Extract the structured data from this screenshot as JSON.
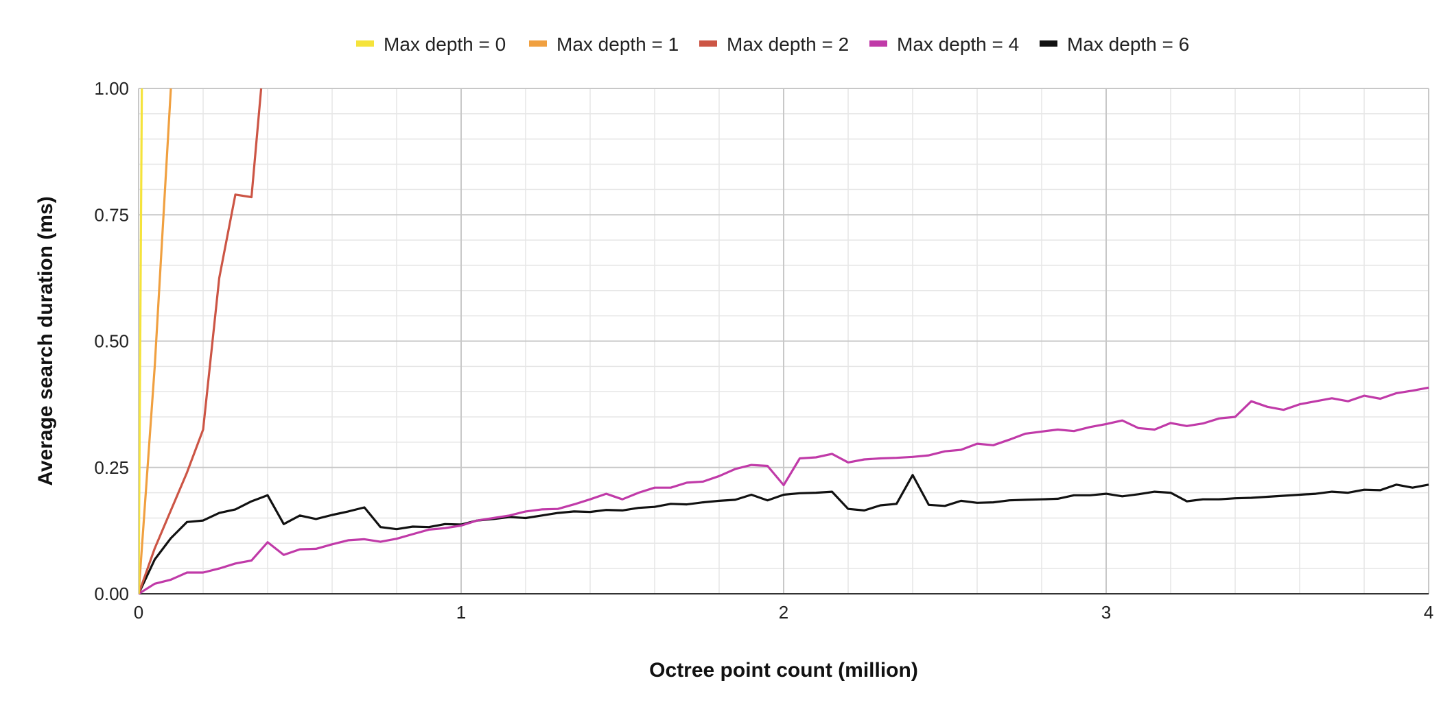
{
  "chart_data": {
    "type": "line",
    "title": "",
    "xlabel": "Octree point count (million)",
    "ylabel": "Average search duration (ms)",
    "xlim": [
      0,
      4
    ],
    "ylim": [
      0,
      1
    ],
    "x_ticks": [
      0,
      1,
      2,
      3,
      4
    ],
    "x_tick_labels": [
      "0",
      "1",
      "2",
      "3",
      "4"
    ],
    "y_ticks": [
      0,
      0.25,
      0.5,
      0.75,
      1
    ],
    "y_tick_labels": [
      "0.00",
      "0.25",
      "0.50",
      "0.75",
      "1.00"
    ],
    "grid": true,
    "legend_position": "top-center",
    "series": [
      {
        "name": "Max depth = 0",
        "color": "#f5e33b",
        "x": [
          0,
          0.01
        ],
        "y": [
          0,
          1.0
        ]
      },
      {
        "name": "Max depth = 1",
        "color": "#f0a040",
        "x": [
          0,
          0.05,
          0.1
        ],
        "y": [
          0,
          0.45,
          1.0
        ]
      },
      {
        "name": "Max depth = 2",
        "color": "#cc5545",
        "x": [
          0,
          0.05,
          0.1,
          0.15,
          0.2,
          0.25,
          0.3,
          0.35,
          0.38
        ],
        "y": [
          0,
          0.09,
          0.165,
          0.24,
          0.325,
          0.625,
          0.79,
          0.785,
          1.0
        ]
      },
      {
        "name": "Max depth = 4",
        "color": "#c03aa8",
        "x": [
          0,
          0.05,
          0.1,
          0.15,
          0.2,
          0.25,
          0.3,
          0.35,
          0.4,
          0.45,
          0.5,
          0.55,
          0.6,
          0.65,
          0.7,
          0.75,
          0.8,
          0.85,
          0.9,
          0.95,
          1.0,
          1.05,
          1.1,
          1.15,
          1.2,
          1.25,
          1.3,
          1.35,
          1.4,
          1.45,
          1.5,
          1.55,
          1.6,
          1.65,
          1.7,
          1.75,
          1.8,
          1.85,
          1.9,
          1.95,
          2.0,
          2.05,
          2.1,
          2.15,
          2.2,
          2.25,
          2.3,
          2.35,
          2.4,
          2.45,
          2.5,
          2.55,
          2.6,
          2.65,
          2.7,
          2.75,
          2.8,
          2.85,
          2.9,
          2.95,
          3.0,
          3.05,
          3.1,
          3.15,
          3.2,
          3.25,
          3.3,
          3.35,
          3.4,
          3.45,
          3.5,
          3.55,
          3.6,
          3.65,
          3.7,
          3.75,
          3.8,
          3.85,
          3.9,
          3.95,
          4.0
        ],
        "y": [
          0,
          0.02,
          0.028,
          0.042,
          0.042,
          0.05,
          0.06,
          0.066,
          0.102,
          0.077,
          0.088,
          0.089,
          0.098,
          0.106,
          0.108,
          0.103,
          0.109,
          0.118,
          0.127,
          0.13,
          0.135,
          0.145,
          0.15,
          0.155,
          0.163,
          0.167,
          0.168,
          0.177,
          0.187,
          0.198,
          0.187,
          0.2,
          0.21,
          0.21,
          0.22,
          0.222,
          0.233,
          0.247,
          0.255,
          0.253,
          0.215,
          0.268,
          0.27,
          0.277,
          0.26,
          0.266,
          0.268,
          0.269,
          0.271,
          0.274,
          0.282,
          0.285,
          0.297,
          0.294,
          0.305,
          0.317,
          0.321,
          0.325,
          0.322,
          0.33,
          0.336,
          0.343,
          0.328,
          0.325,
          0.338,
          0.332,
          0.337,
          0.347,
          0.35,
          0.381,
          0.37,
          0.364,
          0.375,
          0.381,
          0.387,
          0.381,
          0.392,
          0.386,
          0.397,
          0.402,
          0.408
        ]
      },
      {
        "name": "Max depth = 6",
        "color": "#111111",
        "x": [
          0,
          0.05,
          0.1,
          0.15,
          0.2,
          0.25,
          0.3,
          0.35,
          0.4,
          0.45,
          0.5,
          0.55,
          0.6,
          0.65,
          0.7,
          0.75,
          0.8,
          0.85,
          0.9,
          0.95,
          1.0,
          1.05,
          1.1,
          1.15,
          1.2,
          1.25,
          1.3,
          1.35,
          1.4,
          1.45,
          1.5,
          1.55,
          1.6,
          1.65,
          1.7,
          1.75,
          1.8,
          1.85,
          1.9,
          1.95,
          2.0,
          2.05,
          2.1,
          2.15,
          2.2,
          2.25,
          2.3,
          2.35,
          2.4,
          2.45,
          2.5,
          2.55,
          2.6,
          2.65,
          2.7,
          2.75,
          2.8,
          2.85,
          2.9,
          2.95,
          3.0,
          3.05,
          3.1,
          3.15,
          3.2,
          3.25,
          3.3,
          3.35,
          3.4,
          3.45,
          3.5,
          3.55,
          3.6,
          3.65,
          3.7,
          3.75,
          3.8,
          3.85,
          3.9,
          3.95,
          4.0
        ],
        "y": [
          0,
          0.068,
          0.11,
          0.142,
          0.145,
          0.16,
          0.167,
          0.183,
          0.195,
          0.138,
          0.155,
          0.148,
          0.156,
          0.163,
          0.171,
          0.132,
          0.128,
          0.133,
          0.132,
          0.138,
          0.137,
          0.145,
          0.148,
          0.152,
          0.15,
          0.155,
          0.16,
          0.163,
          0.162,
          0.166,
          0.165,
          0.17,
          0.172,
          0.178,
          0.177,
          0.181,
          0.184,
          0.186,
          0.196,
          0.185,
          0.196,
          0.199,
          0.2,
          0.202,
          0.168,
          0.165,
          0.175,
          0.178,
          0.235,
          0.176,
          0.174,
          0.184,
          0.18,
          0.181,
          0.185,
          0.186,
          0.187,
          0.188,
          0.195,
          0.195,
          0.198,
          0.193,
          0.197,
          0.202,
          0.2,
          0.183,
          0.187,
          0.187,
          0.189,
          0.19,
          0.192,
          0.194,
          0.196,
          0.198,
          0.202,
          0.2,
          0.206,
          0.205,
          0.216,
          0.21,
          0.216
        ]
      }
    ]
  }
}
